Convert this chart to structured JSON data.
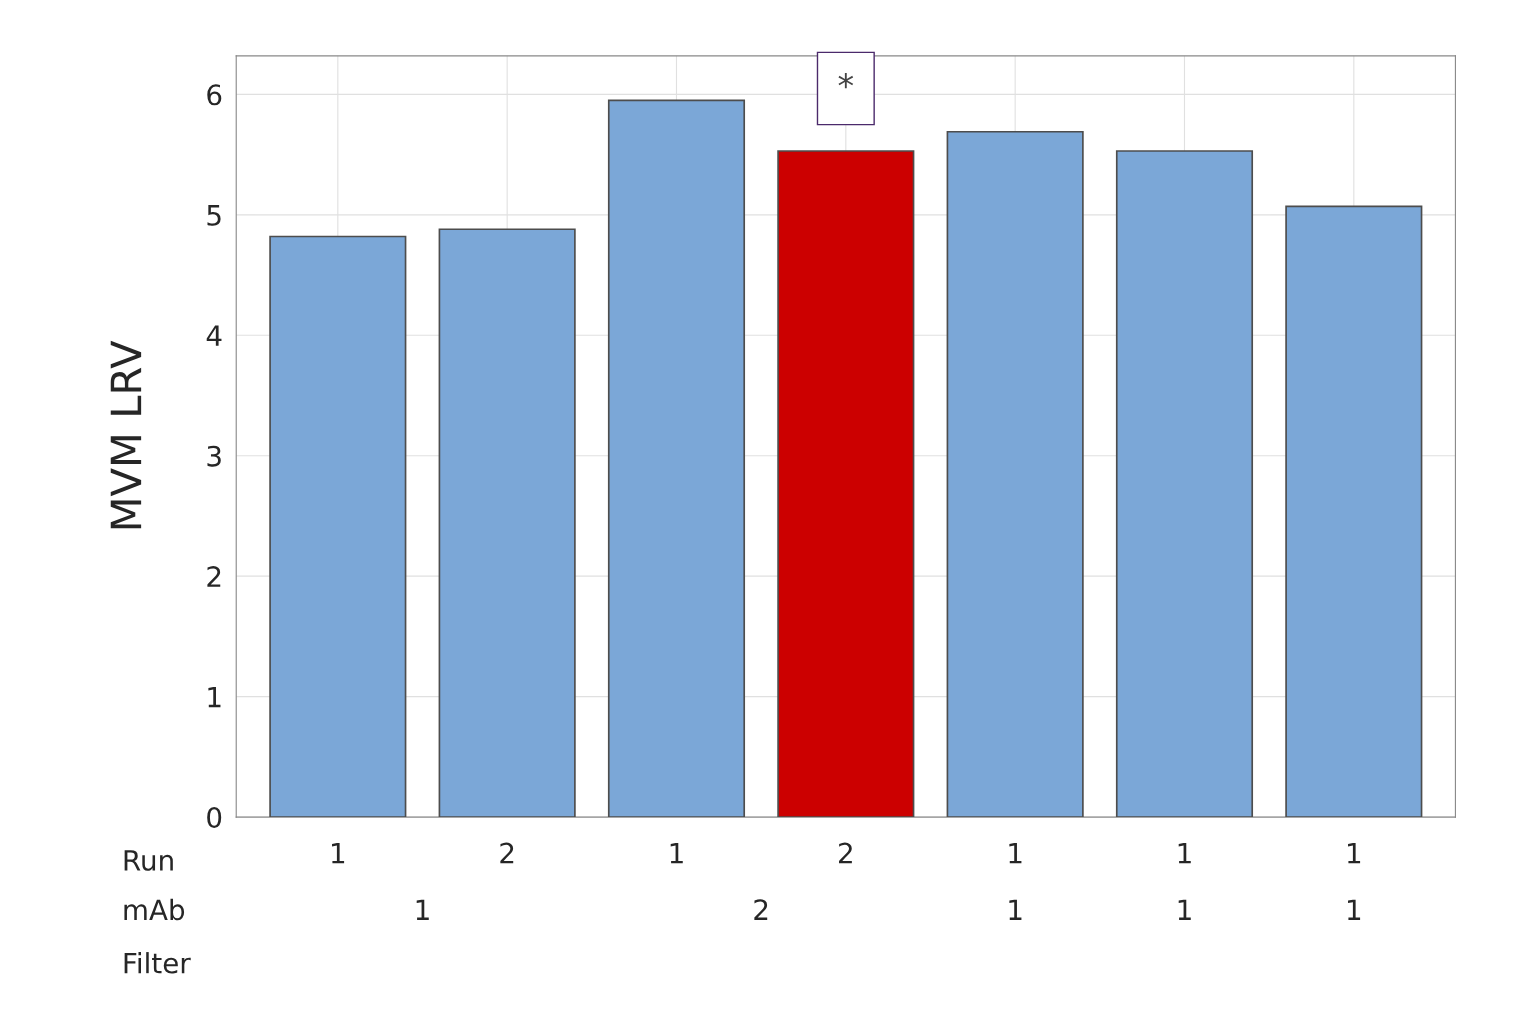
{
  "chart_data": {
    "type": "bar",
    "ylabel": "MVM LRV",
    "categories": [
      "1",
      "2",
      "1",
      "2",
      "1",
      "1",
      "1"
    ],
    "values": [
      4.82,
      4.88,
      5.95,
      5.53,
      5.69,
      5.53,
      5.07
    ],
    "colors": [
      "#7ba7d7",
      "#7ba7d7",
      "#7ba7d7",
      "#cc0000",
      "#7ba7d7",
      "#7ba7d7",
      "#7ba7d7"
    ],
    "ylim": [
      0,
      6.32
    ],
    "yticks": [
      0,
      1,
      2,
      3,
      4,
      5,
      6
    ],
    "grid": true,
    "annotations": [
      "Run",
      "mAb",
      "Filter",
      "1",
      "2",
      "1",
      "1",
      "1",
      "*"
    ]
  }
}
